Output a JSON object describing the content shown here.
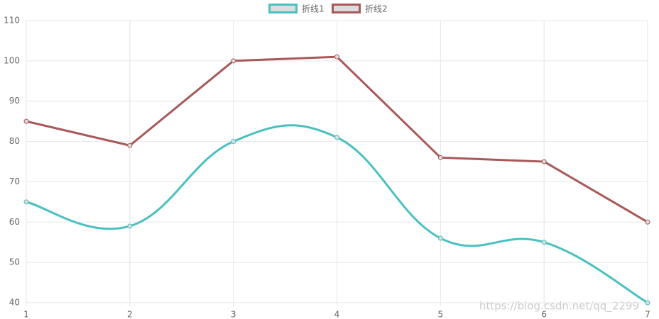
{
  "chart_data": {
    "type": "line",
    "categories": [
      "1",
      "2",
      "3",
      "4",
      "5",
      "6",
      "7"
    ],
    "series": [
      {
        "name": "折线1",
        "color": "#4bc0c0",
        "smooth": true,
        "values": [
          65,
          59,
          80,
          81,
          56,
          55,
          40
        ]
      },
      {
        "name": "折线2",
        "color": "#a85858",
        "smooth": false,
        "values": [
          85,
          79,
          100,
          101,
          76,
          75,
          60
        ]
      }
    ],
    "ylim": [
      40,
      110
    ],
    "yticks": [
      40,
      50,
      60,
      70,
      80,
      90,
      100,
      110
    ],
    "grid": true,
    "legend": "top",
    "watermark": "https://blog.csdn.net/qq_2299"
  }
}
